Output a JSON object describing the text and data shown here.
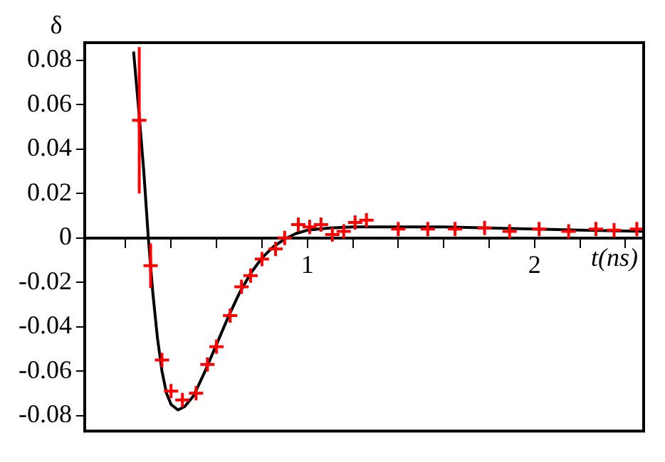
{
  "chart_data": {
    "type": "scatter",
    "xlabel": "t(ns)",
    "ylabel": "δ",
    "xlim": [
      0.02,
      2.48
    ],
    "ylim": [
      -0.087,
      0.088
    ],
    "xticks": [
      {
        "value": 0.2,
        "label": null
      },
      {
        "value": 0.4,
        "label": null
      },
      {
        "value": 0.6,
        "label": null
      },
      {
        "value": 0.8,
        "label": null
      },
      1,
      {
        "value": 1.2,
        "label": null
      },
      {
        "value": 1.4,
        "label": null
      },
      {
        "value": 1.6,
        "label": null
      },
      {
        "value": 1.8,
        "label": null
      },
      2,
      {
        "value": 2.2,
        "label": null
      },
      {
        "value": 2.4,
        "label": null
      }
    ],
    "yticks": [
      -0.08,
      -0.06,
      -0.04,
      -0.02,
      0,
      0.02,
      0.04,
      0.06,
      0.08
    ],
    "grid": false,
    "legend": false,
    "series": [
      {
        "type": "scatter",
        "color": "#ff0000",
        "marker": "cross",
        "x": [
          0.26,
          0.31,
          0.36,
          0.4,
          0.45,
          0.51,
          0.56,
          0.6,
          0.66,
          0.71,
          0.75,
          0.8,
          0.86,
          0.9,
          0.96,
          1.01,
          1.06,
          1.11,
          1.16,
          1.21,
          1.26,
          1.4,
          1.53,
          1.65,
          1.78,
          1.89,
          2.02,
          2.15,
          2.27,
          2.35,
          2.45
        ],
        "values": [
          0.053,
          -0.0125,
          -0.055,
          -0.069,
          -0.073,
          -0.07,
          -0.057,
          -0.049,
          -0.035,
          -0.022,
          -0.017,
          -0.0095,
          -0.005,
          0.0,
          0.006,
          0.005,
          0.006,
          0.0015,
          0.003,
          0.007,
          0.008,
          0.004,
          0.004,
          0.004,
          0.0045,
          0.003,
          0.004,
          0.003,
          0.004,
          0.0035,
          0.004
        ],
        "errors": [
          0.033,
          0.01,
          null,
          null,
          null,
          null,
          null,
          null,
          null,
          null,
          null,
          null,
          null,
          null,
          null,
          null,
          null,
          null,
          null,
          null,
          null,
          null,
          null,
          null,
          null,
          null,
          null,
          null,
          null,
          null,
          null
        ]
      },
      {
        "type": "line",
        "color": "#000000",
        "marker": "none",
        "x": [
          0.235,
          0.26,
          0.28,
          0.3,
          0.32,
          0.34,
          0.36,
          0.38,
          0.4,
          0.43,
          0.46,
          0.5,
          0.55,
          0.6,
          0.65,
          0.7,
          0.75,
          0.8,
          0.85,
          0.9,
          0.95,
          1.0,
          1.1,
          1.2,
          1.4,
          1.6,
          1.8,
          2.0,
          2.2,
          2.48
        ],
        "values": [
          0.084,
          0.055,
          0.03,
          0.0,
          -0.025,
          -0.045,
          -0.06,
          -0.07,
          -0.075,
          -0.0775,
          -0.076,
          -0.071,
          -0.06,
          -0.048,
          -0.036,
          -0.025,
          -0.016,
          -0.009,
          -0.004,
          -0.0005,
          0.002,
          0.0035,
          0.0045,
          0.005,
          0.005,
          0.005,
          0.0045,
          0.004,
          0.0035,
          0.003
        ]
      }
    ]
  }
}
